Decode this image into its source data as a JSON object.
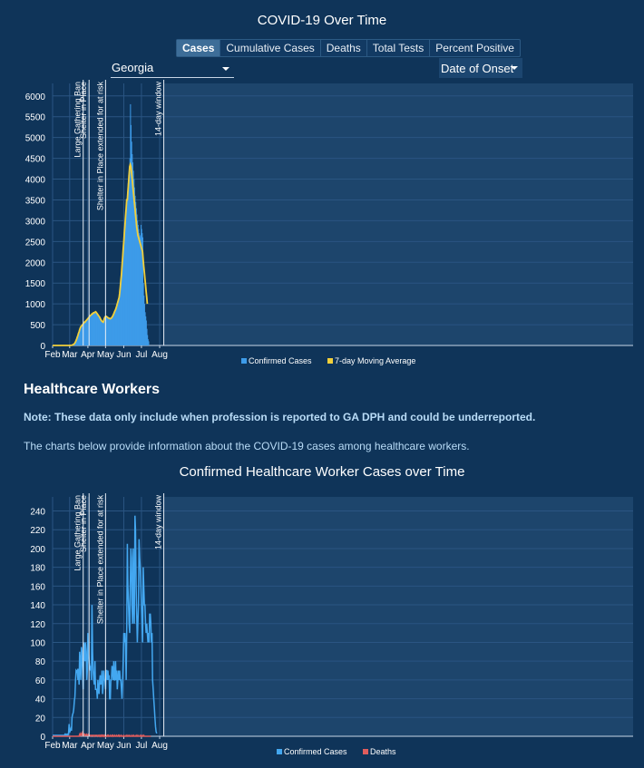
{
  "header": {
    "title": "COVID-19 Over Time"
  },
  "tabs": [
    {
      "label": "Cases",
      "active": true
    },
    {
      "label": "Cumulative Cases",
      "active": false
    },
    {
      "label": "Deaths",
      "active": false
    },
    {
      "label": "Total Tests",
      "active": false
    },
    {
      "label": "Percent Positive",
      "active": false
    }
  ],
  "filters": {
    "state": "Georgia",
    "date_basis": "Date of Onset"
  },
  "healthcare": {
    "heading": "Healthcare Workers",
    "note": "Note: These data only include when profession is reported to GA DPH and could be underreported.",
    "description": "The charts below provide information about the COVID-19 cases among healthcare workers.",
    "chart_title": "Confirmed Healthcare Worker Cases over Time"
  },
  "colors": {
    "bars": "#3d9be9",
    "average": "#f2cf3a",
    "cases_line": "#43a7f0",
    "deaths_line": "#e05d5d",
    "background": "#0f3459"
  },
  "chart_data": [
    {
      "type": "bar",
      "title": "",
      "x_ticks": [
        "Feb",
        "Mar",
        "Apr",
        "May",
        "Jun",
        "Jul",
        "Aug"
      ],
      "y_ticks": [
        0,
        500,
        1000,
        1500,
        2000,
        2500,
        3000,
        3500,
        4000,
        4500,
        5000,
        5500,
        6000
      ],
      "ylim": [
        0,
        6300
      ],
      "grid": true,
      "legend_position": "bottom",
      "annotations": [
        {
          "label": "Large Gathering Ban",
          "date": "2020-03-24"
        },
        {
          "label": "Shelter in Place",
          "date": "2020-04-03"
        },
        {
          "label": "Shelter in Place extended for at risk",
          "date": "2020-05-01"
        },
        {
          "label": "14-day window",
          "date": "2020-08-08"
        }
      ],
      "series": [
        {
          "name": "Confirmed Cases",
          "type": "bar",
          "x_start": "2020-02-01",
          "values": [
            0,
            0,
            0,
            0,
            0,
            0,
            0,
            0,
            0,
            0,
            0,
            0,
            0,
            0,
            0,
            0,
            0,
            0,
            0,
            0,
            0,
            0,
            0,
            0,
            0,
            0,
            0,
            0,
            1,
            2,
            3,
            3,
            5,
            7,
            12,
            20,
            30,
            40,
            60,
            90,
            120,
            160,
            200,
            240,
            290,
            330,
            380,
            420,
            450,
            470,
            480,
            500,
            520,
            540,
            560,
            560,
            580,
            600,
            610,
            630,
            650,
            660,
            680,
            700,
            720,
            730,
            740,
            760,
            760,
            780,
            790,
            790,
            800,
            810,
            800,
            780,
            760,
            740,
            720,
            700,
            680,
            650,
            620,
            600,
            580,
            570,
            560,
            600,
            650,
            680,
            700,
            700,
            690,
            680,
            670,
            660,
            650,
            650,
            640,
            650,
            660,
            680,
            700,
            730,
            760,
            800,
            830,
            860,
            900,
            950,
            1000,
            1050,
            1100,
            1150,
            1250,
            1400,
            1550,
            1700,
            1900,
            2100,
            2300,
            2500,
            2700,
            2900,
            3100,
            3300,
            3500,
            3700,
            3900,
            4100,
            4300,
            4500,
            5800,
            5300,
            4900,
            4600,
            4400,
            4200,
            4000,
            3800,
            3600,
            3450,
            3300,
            3150,
            3000,
            2900,
            2800,
            2700,
            2650,
            2600,
            2900,
            2800,
            2700,
            2600,
            1500,
            1200,
            1000,
            800,
            700,
            600,
            400,
            250,
            150,
            100
          ]
        },
        {
          "name": "7-day Moving Average",
          "type": "line",
          "x_start": "2020-02-01",
          "values": [
            0,
            0,
            0,
            0,
            0,
            0,
            0,
            0,
            0,
            0,
            0,
            0,
            0,
            0,
            0,
            0,
            0,
            0,
            0,
            0,
            0,
            0,
            0,
            0,
            0,
            0,
            0,
            0,
            1,
            2,
            3,
            3,
            5,
            7,
            12,
            20,
            30,
            40,
            60,
            90,
            120,
            160,
            200,
            240,
            290,
            330,
            380,
            420,
            450,
            470,
            480,
            500,
            520,
            540,
            560,
            560,
            580,
            600,
            610,
            630,
            650,
            660,
            680,
            700,
            720,
            730,
            740,
            760,
            760,
            780,
            790,
            790,
            800,
            810,
            800,
            780,
            760,
            740,
            720,
            700,
            680,
            650,
            620,
            600,
            580,
            570,
            560,
            600,
            650,
            680,
            700,
            700,
            690,
            680,
            670,
            660,
            650,
            650,
            640,
            650,
            660,
            680,
            700,
            730,
            760,
            800,
            830,
            860,
            900,
            950,
            1000,
            1050,
            1100,
            1150,
            1250,
            1400,
            1550,
            1700,
            1900,
            2100,
            2300,
            2500,
            2700,
            2900,
            3100,
            3300,
            3500,
            3500,
            3700,
            3900,
            4100,
            4300,
            4350,
            4300,
            4200,
            4050,
            3900,
            3750,
            3600,
            3450,
            3300,
            3150,
            3000,
            2850,
            2750,
            2650,
            2600,
            2550,
            2500,
            2450,
            2400,
            2350,
            2300,
            2250,
            2050,
            1900,
            1750,
            1600,
            1450,
            1300,
            1150,
            1000
          ]
        }
      ]
    },
    {
      "type": "line",
      "title": "Confirmed Healthcare Worker Cases over Time",
      "x_ticks": [
        "Feb",
        "Mar",
        "Apr",
        "May",
        "Jun",
        "Jul",
        "Aug"
      ],
      "y_ticks": [
        0,
        20,
        40,
        60,
        80,
        100,
        120,
        140,
        160,
        180,
        200,
        220,
        240
      ],
      "ylim": [
        0,
        255
      ],
      "grid": true,
      "legend_position": "bottom",
      "annotations": [
        {
          "label": "Large Gathering Ban",
          "date": "2020-03-24"
        },
        {
          "label": "Shelter in Place",
          "date": "2020-04-03"
        },
        {
          "label": "Shelter in Place extended for at risk",
          "date": "2020-05-01"
        },
        {
          "label": "14-day window",
          "date": "2020-08-08"
        }
      ],
      "series": [
        {
          "name": "Confirmed Cases",
          "x_start": "2020-02-01",
          "values": [
            1,
            1,
            1,
            1,
            1,
            1,
            1,
            1,
            1,
            1,
            1,
            1,
            1,
            1,
            1,
            1,
            1,
            1,
            1,
            1,
            1,
            2,
            1,
            2,
            1,
            2,
            1,
            2,
            13,
            4,
            6,
            8,
            6,
            20,
            23,
            25,
            29,
            38,
            42,
            60,
            70,
            69,
            70,
            60,
            72,
            55,
            90,
            80,
            60,
            95,
            90,
            70,
            50,
            100,
            95,
            80,
            100,
            90,
            60,
            70,
            110,
            90,
            80,
            75,
            70,
            75,
            60,
            140,
            90,
            70,
            60,
            55,
            80,
            50,
            50,
            50,
            40,
            60,
            50,
            45,
            60,
            65,
            55,
            60,
            70,
            45,
            55,
            70,
            60,
            60,
            50,
            70,
            70,
            60,
            70,
            60,
            65,
            40,
            40,
            60,
            60,
            75,
            70,
            60,
            80,
            60,
            60,
            80,
            60,
            70,
            50,
            60,
            70,
            60,
            70,
            60,
            60,
            50,
            40,
            60,
            80,
            110,
            100,
            110,
            95,
            60,
            110,
            205,
            160,
            140,
            120,
            110,
            160,
            200,
            190,
            140,
            120,
            200,
            140,
            120,
            235,
            220,
            160,
            130,
            100,
            120,
            140,
            210,
            190,
            180,
            160,
            140,
            120,
            100,
            180,
            160,
            140,
            140,
            120,
            110,
            120,
            110,
            100,
            110,
            100,
            130,
            130,
            120,
            100,
            110,
            60,
            50,
            40,
            30,
            20,
            10,
            5,
            3
          ]
        },
        {
          "name": "Deaths",
          "x_start": "2020-02-01",
          "values": [
            0,
            0,
            0,
            0,
            0,
            0,
            0,
            0,
            0,
            0,
            0,
            0,
            0,
            0,
            0,
            0,
            0,
            0,
            0,
            0,
            0,
            0,
            0,
            0,
            0,
            0,
            0,
            0,
            0,
            0,
            0,
            0,
            0,
            0,
            0,
            0,
            0,
            0,
            0,
            0,
            0,
            0,
            0,
            0,
            0,
            0,
            2,
            1,
            3,
            2,
            1,
            4,
            3,
            2,
            1,
            2,
            1,
            1,
            2,
            1,
            1,
            2,
            1,
            1,
            1,
            0,
            1,
            1,
            1,
            0,
            1,
            1,
            0,
            1,
            1,
            1,
            0,
            1,
            1,
            0,
            1,
            0,
            1,
            0,
            1,
            0,
            1,
            0,
            1,
            0,
            1,
            0,
            0,
            1,
            0,
            1,
            0,
            0,
            1,
            0,
            0,
            1,
            0,
            1,
            0,
            0,
            1,
            0,
            0,
            1,
            0,
            0,
            1,
            0,
            1,
            0,
            0,
            1,
            0,
            0,
            0,
            1,
            0,
            0,
            0,
            1,
            0,
            0,
            1,
            0,
            0,
            1,
            0,
            0,
            0,
            1,
            0,
            0,
            1,
            0,
            0,
            0,
            1,
            0,
            0,
            1,
            0,
            0,
            0,
            1,
            0,
            0,
            1,
            0,
            0,
            1,
            0,
            0,
            0,
            0,
            0,
            0,
            0,
            0,
            0,
            0,
            0,
            0
          ]
        }
      ]
    }
  ]
}
